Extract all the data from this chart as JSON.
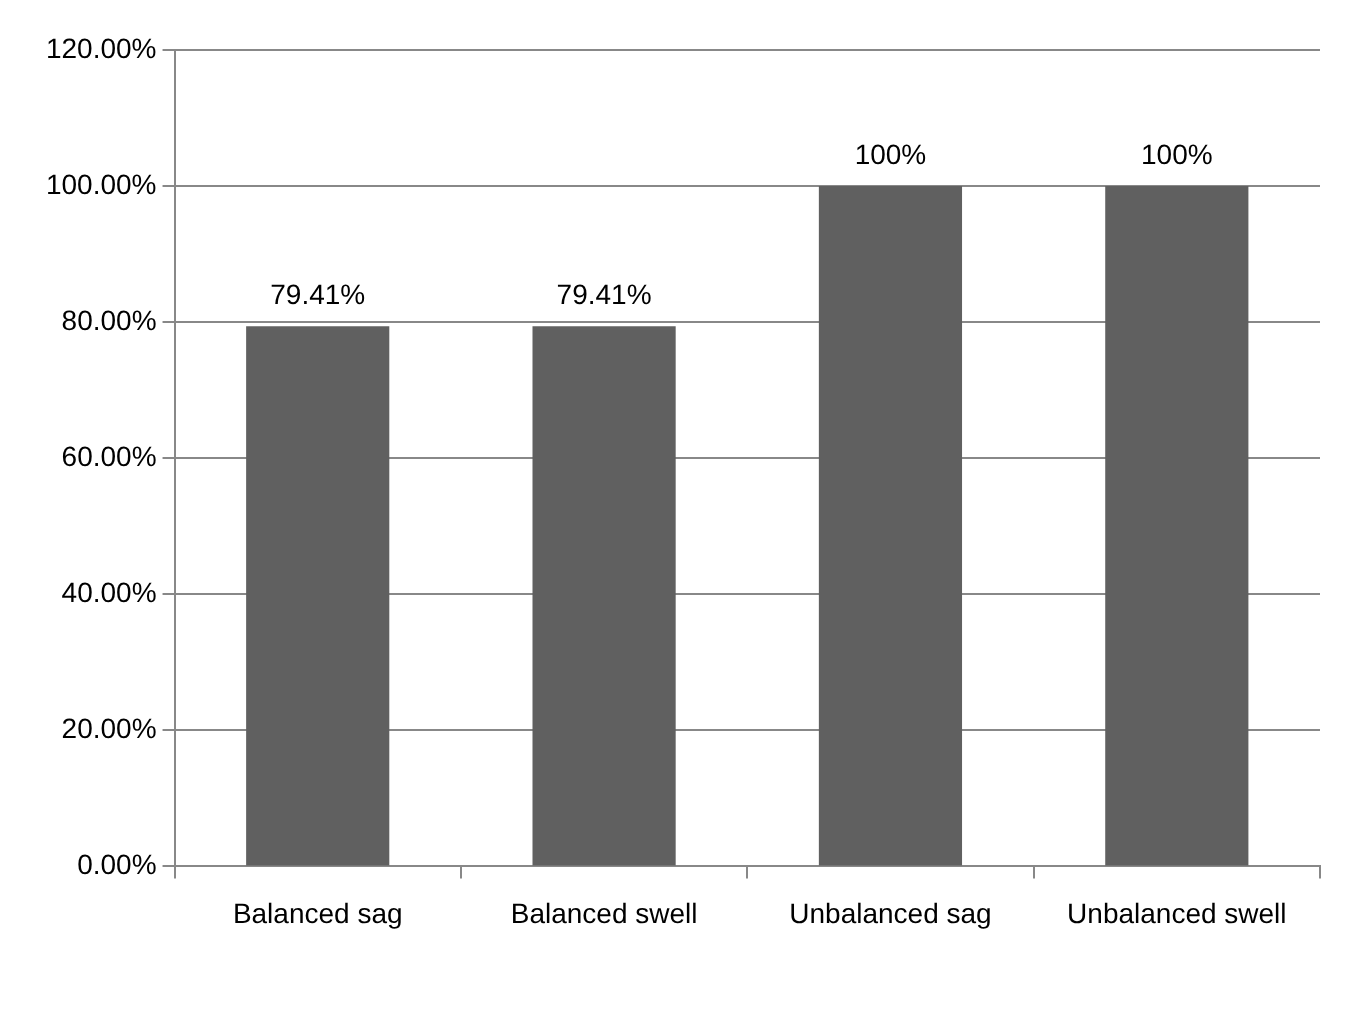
{
  "chart_data": {
    "type": "bar",
    "categories": [
      "Balanced sag",
      "Balanced swell",
      "Unbalanced sag",
      "Unbalanced swell"
    ],
    "values": [
      79.41,
      79.41,
      100,
      100
    ],
    "value_labels": [
      "79.41%",
      "79.41%",
      "100%",
      "100%"
    ],
    "color": "#606060",
    "ylim": [
      0,
      120
    ],
    "yticks": [
      {
        "value": 0,
        "label": "0.00%"
      },
      {
        "value": 20,
        "label": "20.00%"
      },
      {
        "value": 40,
        "label": "40.00%"
      },
      {
        "value": 60,
        "label": "60.00%"
      },
      {
        "value": 80,
        "label": "80.00%"
      },
      {
        "value": 100,
        "label": "100.00%"
      },
      {
        "value": 120,
        "label": "120.00%"
      }
    ],
    "grid": "y"
  }
}
